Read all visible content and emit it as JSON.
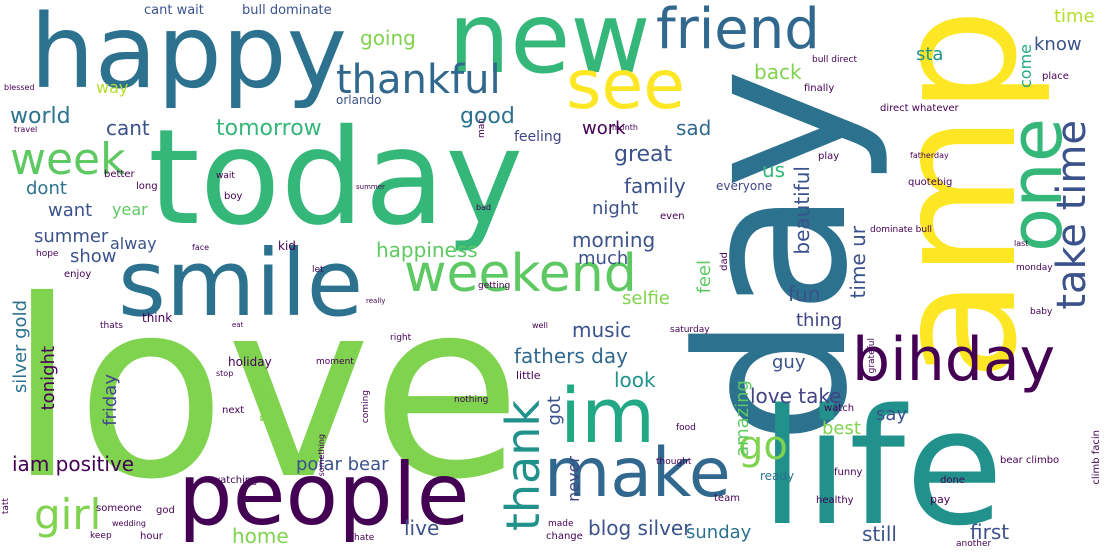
{
  "words": [
    {
      "text": "love",
      "color": "#7fd34e"
    },
    {
      "text": "today",
      "color": "#35b779"
    },
    {
      "text": "day",
      "color": "#2c728e"
    },
    {
      "text": "amp",
      "color": "#fde725"
    },
    {
      "text": "life",
      "color": "#21918c"
    },
    {
      "text": "happy",
      "color": "#2c728e"
    },
    {
      "text": "new",
      "color": "#35b779"
    },
    {
      "text": "smile",
      "color": "#2c728e"
    },
    {
      "text": "people",
      "color": "#440154"
    },
    {
      "text": "make",
      "color": "#31688e"
    },
    {
      "text": "im",
      "color": "#22a884"
    },
    {
      "text": "bihday",
      "color": "#440154"
    },
    {
      "text": "one",
      "color": "#35b779"
    },
    {
      "text": "see",
      "color": "#fde725"
    },
    {
      "text": "friend",
      "color": "#31688e"
    },
    {
      "text": "weekend",
      "color": "#5ec962"
    },
    {
      "text": "thankful",
      "color": "#31688e"
    },
    {
      "text": "take time",
      "color": "#3b528b"
    },
    {
      "text": "thank",
      "color": "#21918c"
    },
    {
      "text": "week",
      "color": "#5ec962"
    },
    {
      "text": "girl",
      "color": "#7fd34e"
    },
    {
      "text": "go",
      "color": "#7fd34e"
    },
    {
      "text": "blog silver",
      "color": "#3b528b"
    },
    {
      "text": "fathers day",
      "color": "#31688e"
    },
    {
      "text": "iam positive",
      "color": "#440154"
    },
    {
      "text": "love take",
      "color": "#414487"
    },
    {
      "text": "happiness",
      "color": "#5ec962"
    },
    {
      "text": "morning",
      "color": "#3b528b"
    },
    {
      "text": "great",
      "color": "#3b528b"
    },
    {
      "text": "family",
      "color": "#3b528b"
    },
    {
      "text": "tomorrow",
      "color": "#35b779"
    },
    {
      "text": "world",
      "color": "#2c728e"
    },
    {
      "text": "good",
      "color": "#2c728e"
    },
    {
      "text": "work",
      "color": "#440154"
    },
    {
      "text": "sad",
      "color": "#31688e"
    },
    {
      "text": "going",
      "color": "#7fd34e"
    },
    {
      "text": "back",
      "color": "#7fd34e"
    },
    {
      "text": "cant",
      "color": "#3b528b"
    },
    {
      "text": "dont",
      "color": "#2c728e"
    },
    {
      "text": "want",
      "color": "#3b528b"
    },
    {
      "text": "year",
      "color": "#5ec962"
    },
    {
      "text": "summer",
      "color": "#3b528b"
    },
    {
      "text": "alway",
      "color": "#3b528b"
    },
    {
      "text": "show",
      "color": "#3b528b"
    },
    {
      "text": "much",
      "color": "#3b528b"
    },
    {
      "text": "music",
      "color": "#3b528b"
    },
    {
      "text": "selfie",
      "color": "#7fd34e"
    },
    {
      "text": "feel",
      "color": "#5ec962"
    },
    {
      "text": "fun",
      "color": "#3b528b"
    },
    {
      "text": "thing",
      "color": "#414487"
    },
    {
      "text": "night",
      "color": "#3b528b"
    },
    {
      "text": "beautiful",
      "color": "#3b528b"
    },
    {
      "text": "amazing",
      "color": "#5ec962"
    },
    {
      "text": "best",
      "color": "#7fd34e"
    },
    {
      "text": "say",
      "color": "#3b528b"
    },
    {
      "text": "first",
      "color": "#3b528b"
    },
    {
      "text": "still",
      "color": "#3b528b"
    },
    {
      "text": "sunday",
      "color": "#2c728e"
    },
    {
      "text": "live",
      "color": "#3b528b"
    },
    {
      "text": "home",
      "color": "#7fd34e"
    },
    {
      "text": "got",
      "color": "#3b528b"
    },
    {
      "text": "guy",
      "color": "#3b528b"
    },
    {
      "text": "look",
      "color": "#21918c"
    },
    {
      "text": "tonight",
      "color": "#440154"
    },
    {
      "text": "silver gold",
      "color": "#2c728e"
    },
    {
      "text": "friday",
      "color": "#414487"
    },
    {
      "text": "really",
      "color": "#7fd34e"
    },
    {
      "text": "polar bear",
      "color": "#3b528b"
    },
    {
      "text": "know",
      "color": "#3b528b"
    },
    {
      "text": "time",
      "color": "#b5de2b"
    },
    {
      "text": "sta",
      "color": "#21918c"
    },
    {
      "text": "come",
      "color": "#22a884"
    },
    {
      "text": "way",
      "color": "#b5de2b"
    },
    {
      "text": "us",
      "color": "#35b779"
    },
    {
      "text": "time ur",
      "color": "#3b528b"
    },
    {
      "text": "never",
      "color": "#414487"
    },
    {
      "text": "ready",
      "color": "#2c728e"
    },
    {
      "text": "cant wait",
      "color": "#3b528b"
    },
    {
      "text": "bull dominate",
      "color": "#3b528b"
    },
    {
      "text": "orlando",
      "color": "#3b528b"
    },
    {
      "text": "feeling",
      "color": "#414487"
    },
    {
      "text": "everyone",
      "color": "#414487"
    },
    {
      "text": "quotebig",
      "color": "#440154"
    },
    {
      "text": "direct whatever",
      "color": "#440154"
    },
    {
      "text": "dominate bull",
      "color": "#440154"
    },
    {
      "text": "bear climbo",
      "color": "#440154"
    },
    {
      "text": "climb facin",
      "color": "#440154"
    },
    {
      "text": "holiday",
      "color": "#440154"
    },
    {
      "text": "think",
      "color": "#440154"
    },
    {
      "text": "kid",
      "color": "#440154"
    },
    {
      "text": "moment",
      "color": "#440154"
    },
    {
      "text": "watching",
      "color": "#440154"
    },
    {
      "text": "someone",
      "color": "#440154"
    },
    {
      "text": "nothing",
      "color": "#440154"
    },
    {
      "text": "thought",
      "color": "#440154"
    },
    {
      "text": "healthy",
      "color": "#440154"
    },
    {
      "text": "funny",
      "color": "#440154"
    },
    {
      "text": "grateful",
      "color": "#440154"
    },
    {
      "text": "monday",
      "color": "#440154"
    },
    {
      "text": "saturday",
      "color": "#440154"
    },
    {
      "text": "even",
      "color": "#440154"
    },
    {
      "text": "play",
      "color": "#440154"
    },
    {
      "text": "done",
      "color": "#440154"
    },
    {
      "text": "pay",
      "color": "#440154"
    },
    {
      "text": "team",
      "color": "#440154"
    },
    {
      "text": "change",
      "color": "#440154"
    },
    {
      "text": "made",
      "color": "#440154"
    },
    {
      "text": "another",
      "color": "#440154"
    },
    {
      "text": "hate",
      "color": "#440154"
    },
    {
      "text": "hour",
      "color": "#440154"
    },
    {
      "text": "keep",
      "color": "#440154"
    },
    {
      "text": "god",
      "color": "#440154"
    },
    {
      "text": "wedding",
      "color": "#440154"
    },
    {
      "text": "finally",
      "color": "#440154"
    },
    {
      "text": "place",
      "color": "#440154"
    },
    {
      "text": "man",
      "color": "#440154"
    },
    {
      "text": "month",
      "color": "#440154"
    },
    {
      "text": "boy",
      "color": "#440154"
    },
    {
      "text": "better",
      "color": "#440154"
    },
    {
      "text": "long",
      "color": "#440154"
    },
    {
      "text": "wait",
      "color": "#440154"
    },
    {
      "text": "dad",
      "color": "#440154"
    },
    {
      "text": "let",
      "color": "#440154"
    },
    {
      "text": "baby",
      "color": "#440154"
    },
    {
      "text": "enjoy",
      "color": "#440154"
    },
    {
      "text": "hope",
      "color": "#440154"
    },
    {
      "text": "face",
      "color": "#440154"
    },
    {
      "text": "getting",
      "color": "#440154"
    },
    {
      "text": "thats",
      "color": "#440154"
    },
    {
      "text": "little",
      "color": "#440154"
    },
    {
      "text": "next",
      "color": "#440154"
    },
    {
      "text": "stop",
      "color": "#440154"
    },
    {
      "text": "coming",
      "color": "#440154"
    },
    {
      "text": "food",
      "color": "#440154"
    },
    {
      "text": "watch",
      "color": "#440154"
    },
    {
      "text": "tatt",
      "color": "#440154"
    },
    {
      "text": "travel",
      "color": "#440154"
    },
    {
      "text": "fatherday",
      "color": "#440154"
    },
    {
      "text": "blessed",
      "color": "#440154"
    },
    {
      "text": "bull direct",
      "color": "#440154"
    },
    {
      "text": "right",
      "color": "#440154"
    },
    {
      "text": "bad",
      "color": "#440154"
    },
    {
      "text": "last",
      "color": "#440154"
    },
    {
      "text": "summer",
      "color": "#440154"
    },
    {
      "text": "well",
      "color": "#440154"
    },
    {
      "text": "eat",
      "color": "#440154"
    },
    {
      "text": "really",
      "color": "#440154"
    },
    {
      "text": "something",
      "color": "#440154"
    }
  ]
}
